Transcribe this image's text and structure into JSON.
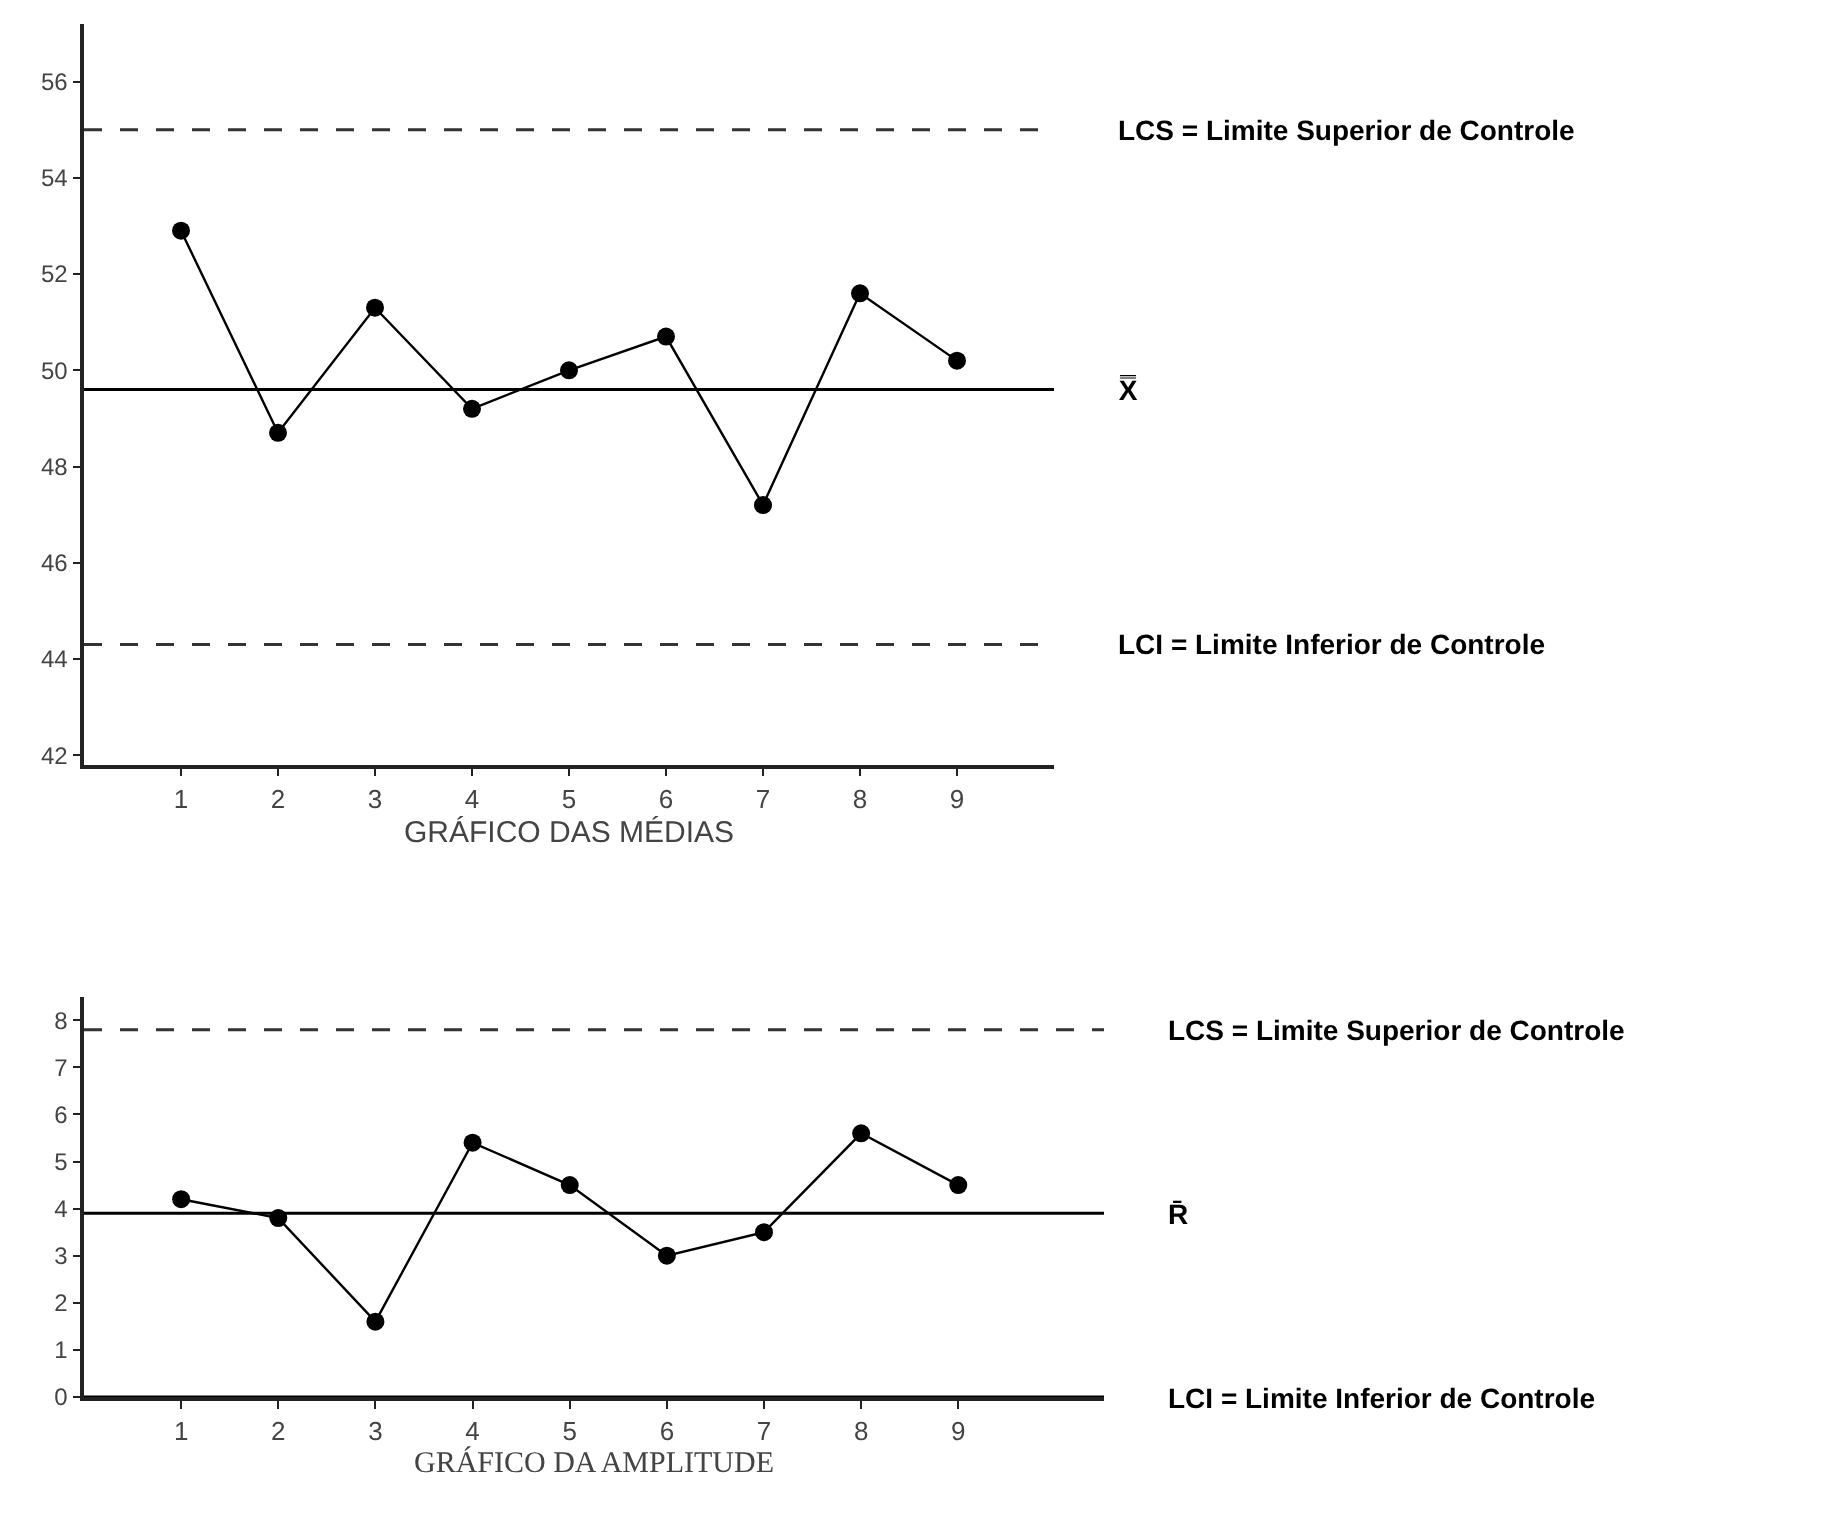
{
  "chart_data": [
    {
      "type": "line",
      "xlabel": "GRÁFICO DAS MÉDIAS",
      "x": [
        1,
        2,
        3,
        4,
        5,
        6,
        7,
        8,
        9
      ],
      "xlim": [
        0,
        10
      ],
      "xticks": [
        1,
        2,
        3,
        4,
        5,
        6,
        7,
        8,
        9
      ],
      "ylim": [
        41.8,
        57.2
      ],
      "yticks": [
        42,
        44,
        46,
        48,
        50,
        52,
        54,
        56
      ],
      "series": [
        {
          "color": "#000000",
          "values": [
            52.9,
            48.7,
            51.3,
            49.2,
            50.0,
            50.7,
            47.2,
            51.6,
            50.2
          ]
        }
      ],
      "marker": "circle",
      "line_style": "solid",
      "ref_lines": [
        {
          "axis": "y",
          "value": 55,
          "label": "LCS = Limite Superior de Controle",
          "color": "#333333",
          "line_style": "dashed"
        },
        {
          "axis": "y",
          "value": 49.6,
          "label": "X̿",
          "color": "#000000",
          "line_style": "solid"
        },
        {
          "axis": "y",
          "value": 44.3,
          "label": "LCI = Limite Inferior de Controle",
          "color": "#333333",
          "line_style": "dashed"
        }
      ]
    },
    {
      "type": "line",
      "xlabel": "GRÁFICO DA AMPLITUDE",
      "x": [
        1,
        2,
        3,
        4,
        5,
        6,
        7,
        8,
        9
      ],
      "xlim": [
        0,
        10.5
      ],
      "xticks": [
        1,
        2,
        3,
        4,
        5,
        6,
        7,
        8,
        9
      ],
      "ylim": [
        0,
        8.5
      ],
      "yticks": [
        0,
        1,
        2,
        3,
        4,
        5,
        6,
        7,
        8
      ],
      "series": [
        {
          "color": "#000000",
          "values": [
            4.2,
            3.8,
            1.6,
            5.4,
            4.5,
            3.0,
            3.5,
            5.6,
            4.5
          ]
        }
      ],
      "marker": "circle",
      "line_style": "solid",
      "ref_lines": [
        {
          "axis": "y",
          "value": 7.8,
          "label": "LCS = Limite Superior de Controle",
          "color": "#333333",
          "line_style": "dashed"
        },
        {
          "axis": "y",
          "value": 3.9,
          "label": "R̄",
          "color": "#000000",
          "line_style": "solid"
        },
        {
          "axis": "y",
          "value": 0,
          "label": "LCI = Limite Inferior de Controle",
          "color": "#000000",
          "line_style": "solid"
        }
      ]
    }
  ]
}
